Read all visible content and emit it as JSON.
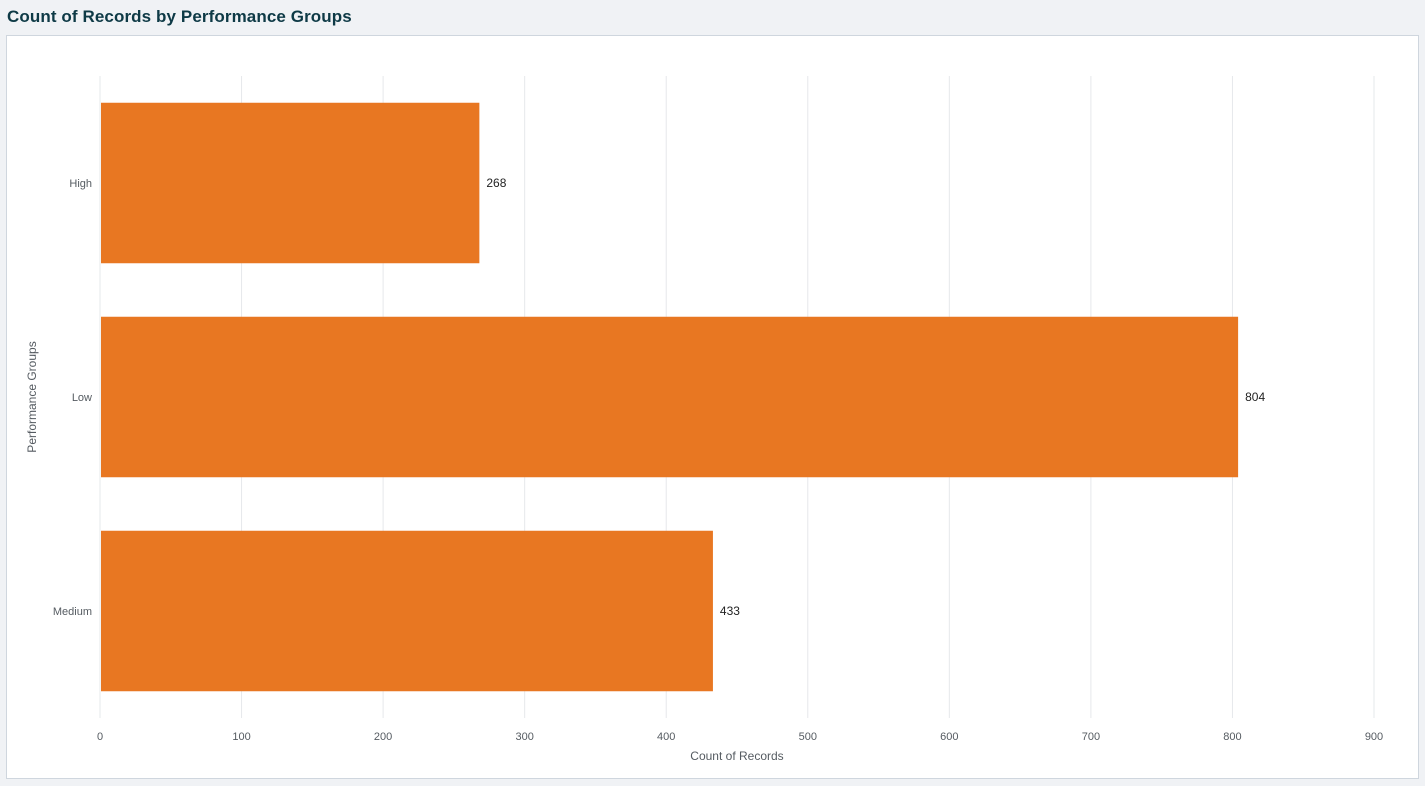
{
  "panel": {
    "title": "Count of Records by Performance Groups"
  },
  "chart_data": {
    "type": "bar",
    "orientation": "horizontal",
    "categories": [
      "High",
      "Low",
      "Medium"
    ],
    "values": [
      268,
      804,
      433
    ],
    "data_labels": [
      "268",
      "804",
      "433"
    ],
    "xlabel": "Count of Records",
    "ylabel": "Performance Groups",
    "xlim": [
      0,
      900
    ],
    "xticks": [
      0,
      100,
      200,
      300,
      400,
      500,
      600,
      700,
      800,
      900
    ],
    "grid": "vertical",
    "bar_color": "#e87722",
    "grid_color": "#e6e8eb"
  }
}
